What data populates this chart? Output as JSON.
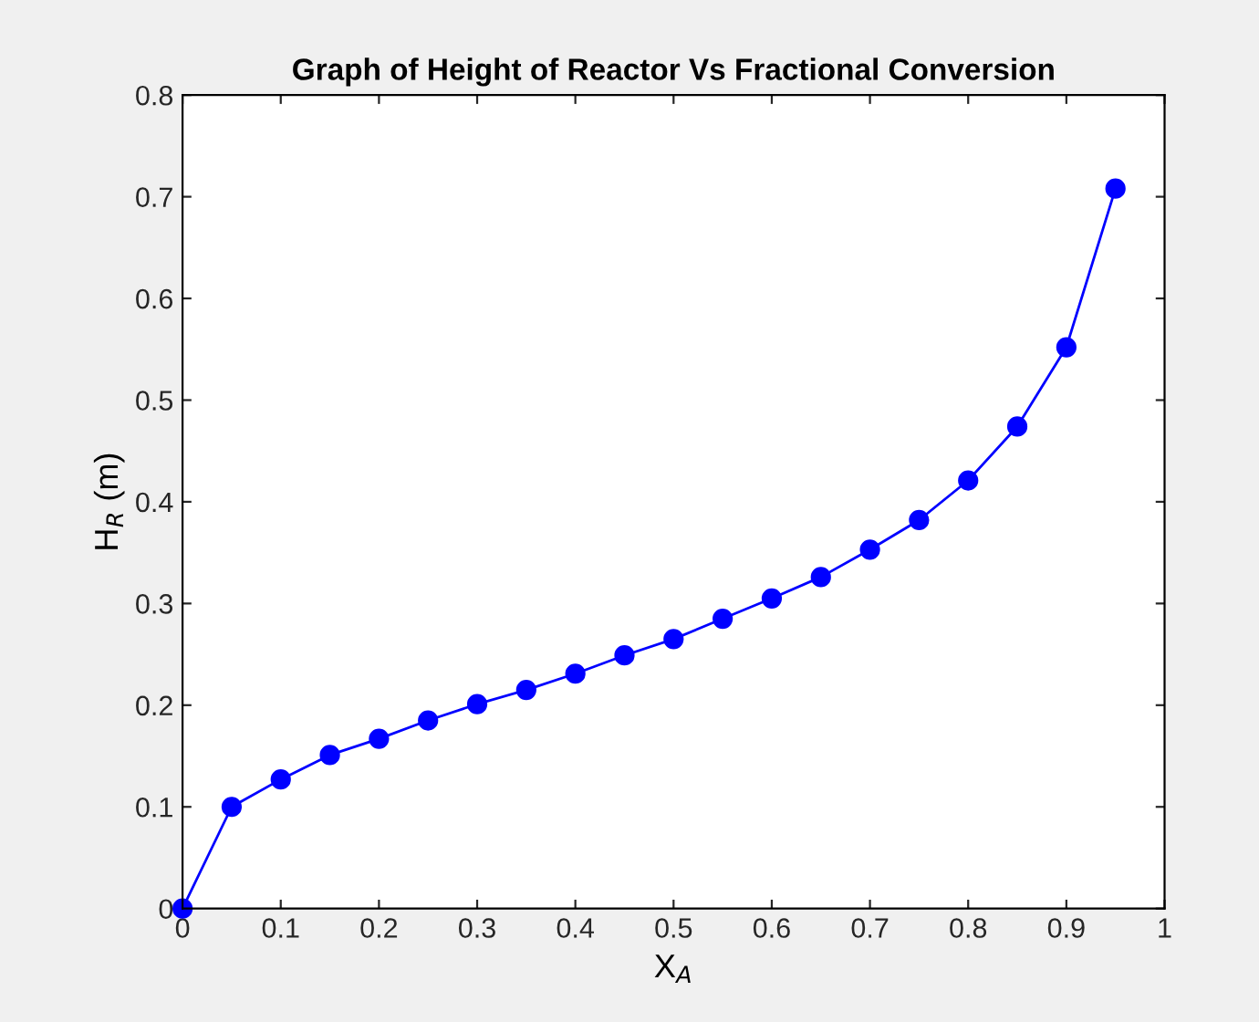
{
  "chart_data": {
    "type": "line",
    "title": "Graph of Height of Reactor Vs Fractional Conversion",
    "xlabel": "X$_{A}$",
    "ylabel": "H$_{R}$ (m)",
    "x": [
      0,
      0.05,
      0.1,
      0.15,
      0.2,
      0.25,
      0.3,
      0.35,
      0.4,
      0.45,
      0.5,
      0.55,
      0.6,
      0.65,
      0.7,
      0.75,
      0.8,
      0.85,
      0.9,
      0.95
    ],
    "series": [
      {
        "color": "#0000ff",
        "values": [
          0,
          0.1,
          0.127,
          0.151,
          0.167,
          0.185,
          0.201,
          0.215,
          0.231,
          0.249,
          0.265,
          0.285,
          0.305,
          0.326,
          0.353,
          0.382,
          0.421,
          0.474,
          0.552,
          0.708
        ]
      }
    ],
    "xlim": [
      0,
      1
    ],
    "ylim": [
      0,
      0.8
    ],
    "xticks": [
      0,
      0.1,
      0.2,
      0.3,
      0.4,
      0.5,
      0.6,
      0.7,
      0.8,
      0.9,
      1
    ],
    "yticks": [
      0,
      0.1,
      0.2,
      0.3,
      0.4,
      0.5,
      0.6,
      0.7,
      0.8
    ],
    "marker": "circle",
    "line_style": "solid",
    "grid": false,
    "legend": false
  }
}
